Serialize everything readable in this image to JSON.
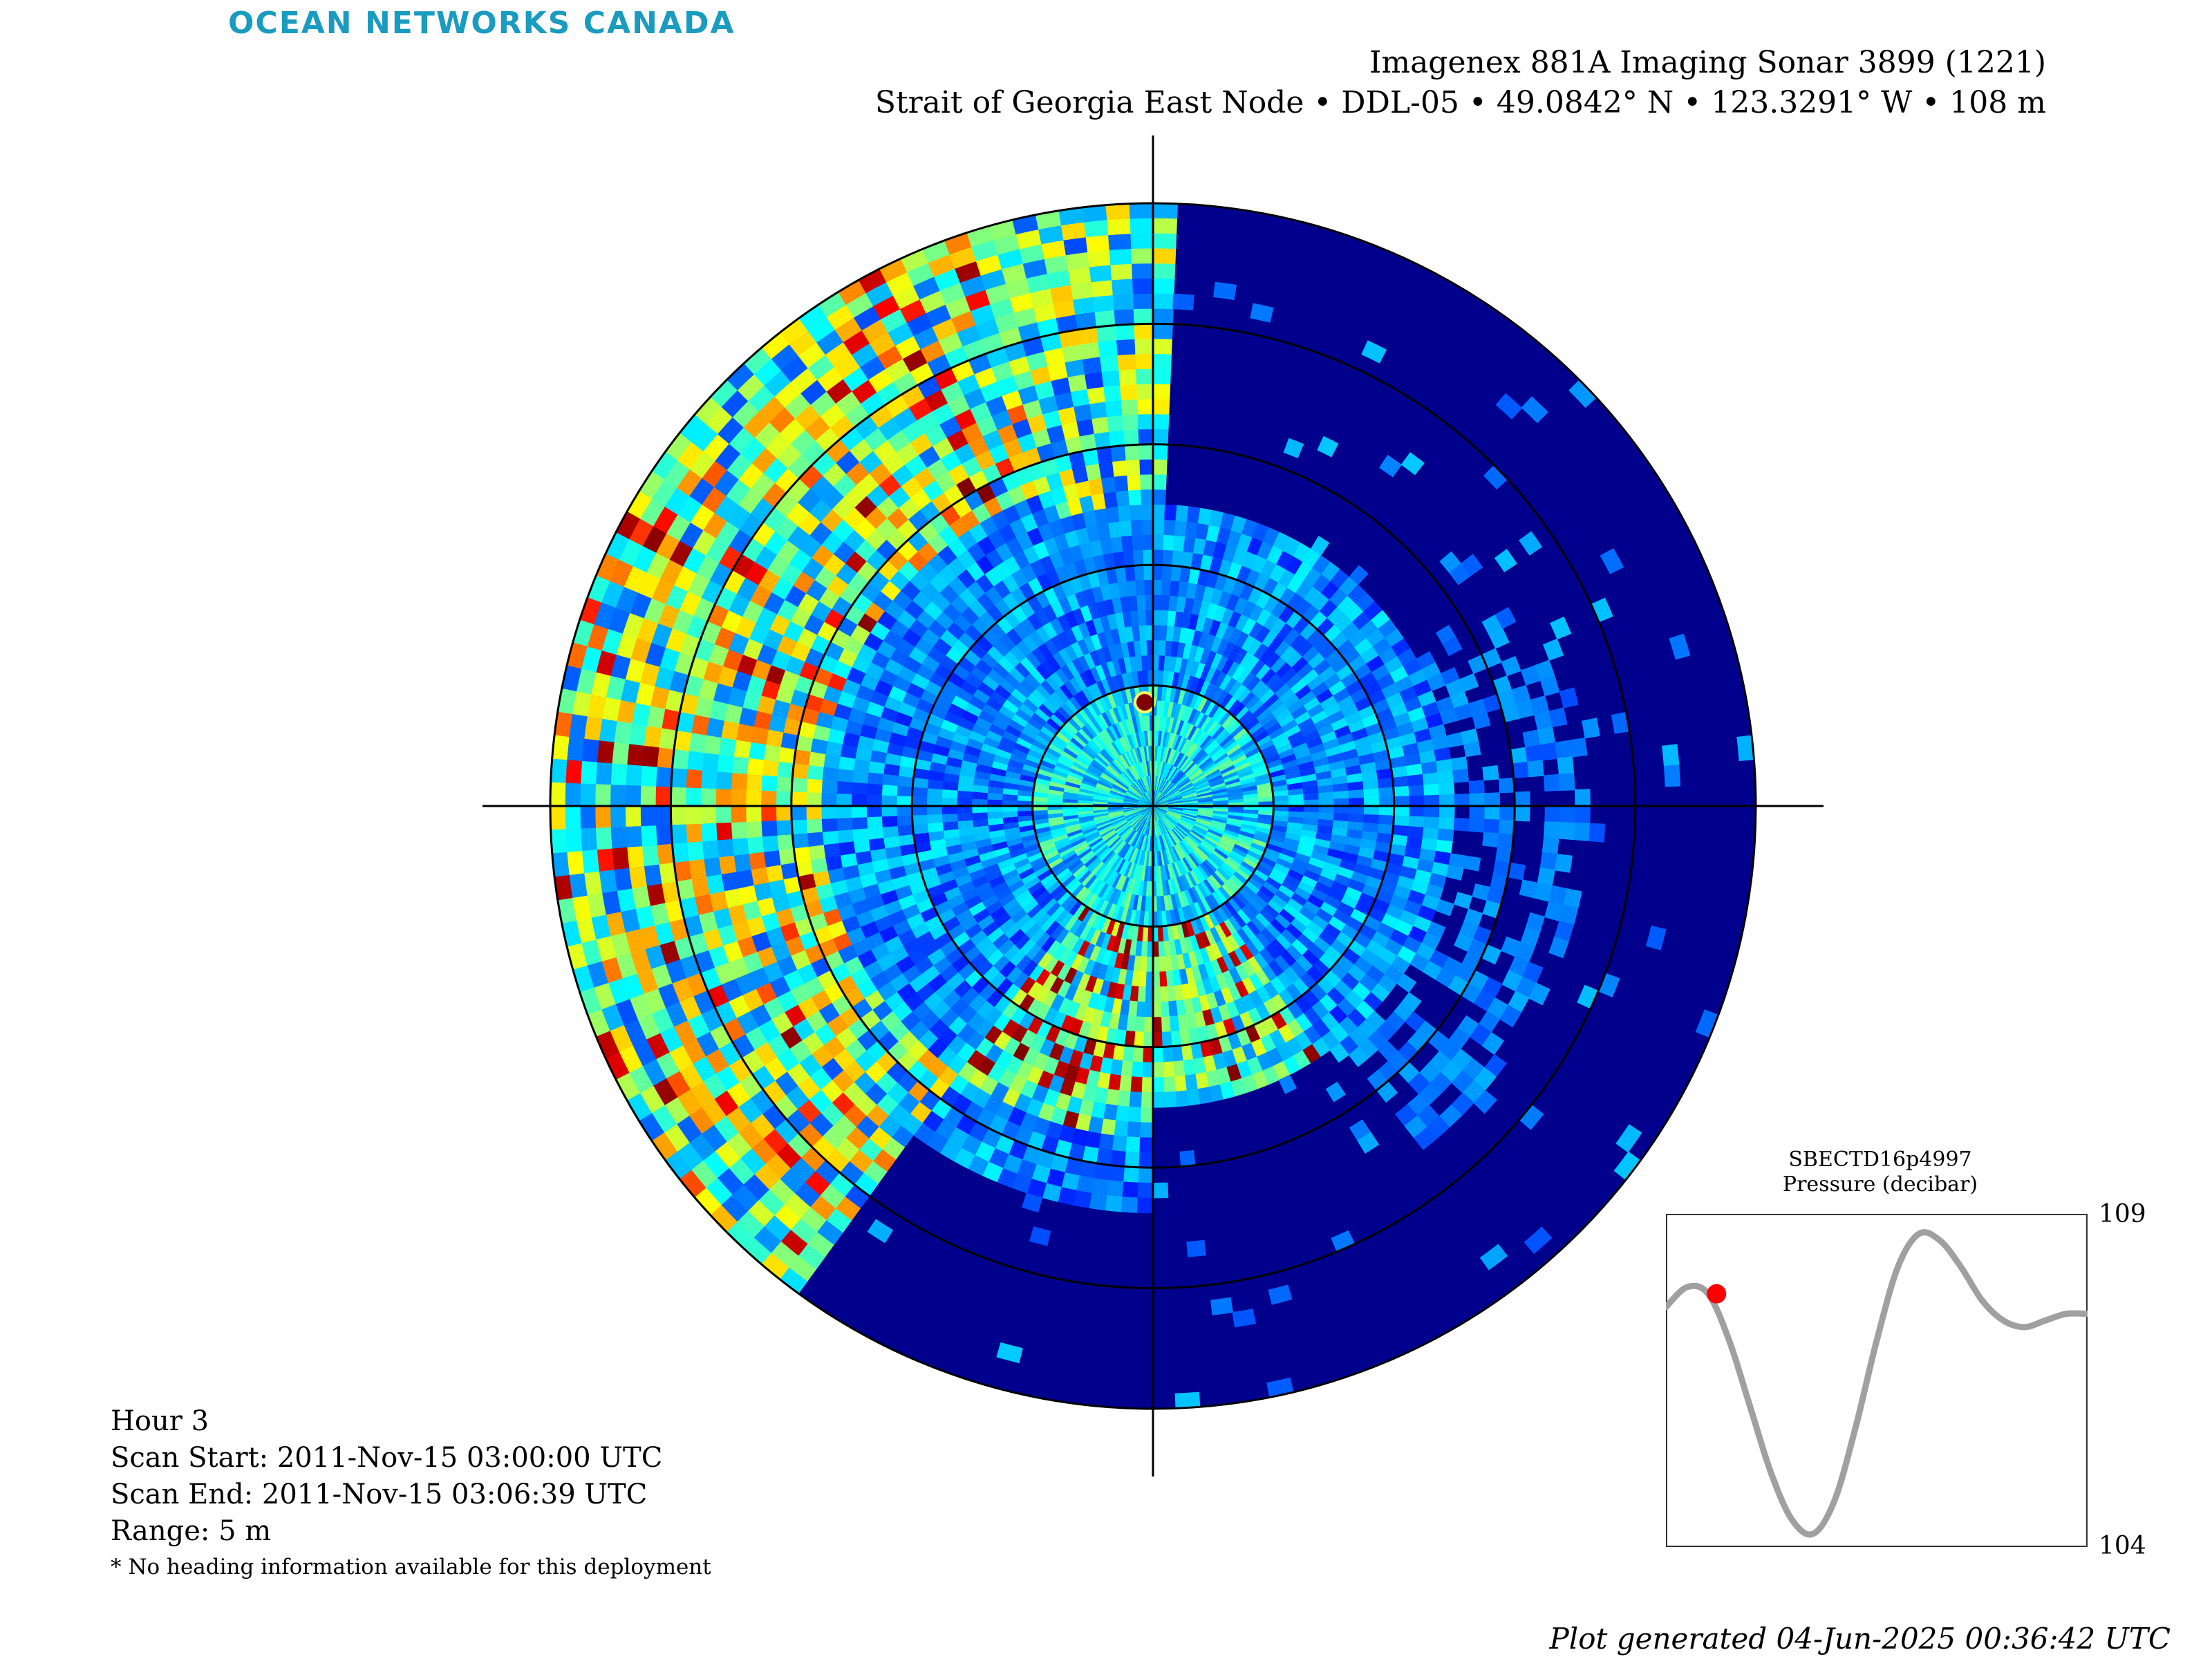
{
  "logo": {
    "text": "OCEAN NETWORKS CANADA"
  },
  "header": {
    "title": "Imagenex 881A Imaging Sonar 3899 (1221)",
    "subtitle": "Strait of Georgia East Node • DDL-05 • 49.0842° N • 123.3291° W • 108 m"
  },
  "info": {
    "hour": "Hour 3",
    "scan_start": "Scan Start: 2011-Nov-15 03:00:00 UTC",
    "scan_end": "Scan End: 2011-Nov-15 03:06:39 UTC",
    "range": "Range: 5 m",
    "note": "* No heading information available for this deployment"
  },
  "footer": {
    "generated": "Plot generated 04-Jun-2025 00:36:42 UTC"
  },
  "chart_data": [
    {
      "type": "heatmap",
      "subtype": "polar-sonar-scan",
      "range_m": 5,
      "range_rings_m": [
        1,
        2,
        3,
        4,
        5
      ],
      "colormap": "jet",
      "background_color": "#00008c",
      "grid": true
    },
    {
      "type": "line",
      "title": "SBECTD16p4997",
      "ylabel": "Pressure (decibar)",
      "ylim": [
        104,
        109
      ],
      "tick_labels": [
        "109",
        "104"
      ],
      "x": [
        0,
        0.05,
        0.1,
        0.15,
        0.2,
        0.25,
        0.3,
        0.35,
        0.4,
        0.45,
        0.5,
        0.55,
        0.6,
        0.65,
        0.7,
        0.75,
        0.8,
        0.85,
        0.9,
        0.95,
        1.0
      ],
      "values": [
        107.6,
        107.9,
        107.8,
        107.1,
        106.1,
        105.1,
        104.4,
        104.2,
        104.7,
        105.8,
        107.1,
        108.2,
        108.7,
        108.6,
        108.2,
        107.7,
        107.4,
        107.3,
        107.4,
        107.5,
        107.5
      ],
      "line_color": "#a0a0a0",
      "marker": {
        "x": 0.12,
        "value": 107.8,
        "color": "#ff0000"
      }
    }
  ]
}
